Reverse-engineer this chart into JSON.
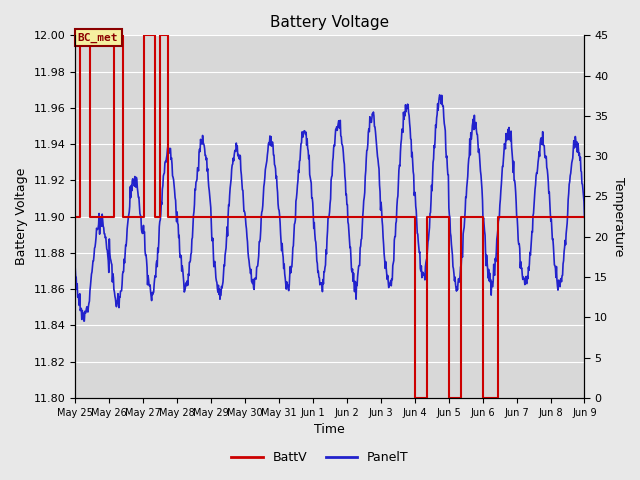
{
  "title": "Battery Voltage",
  "xlabel": "Time",
  "ylabel_left": "Battery Voltage",
  "ylabel_right": "Temperature",
  "ylim_left": [
    11.8,
    12.0
  ],
  "ylim_right": [
    0,
    45
  ],
  "bg_color": "#e8e8e8",
  "plot_bg_color": "#d8d8d8",
  "annotation_text": "BC_met",
  "annotation_bg": "#f5f0a0",
  "annotation_border": "#8b0000",
  "batt_color": "#cc0000",
  "panel_color": "#2222cc",
  "xtick_labels": [
    "May 25",
    "May 26",
    "May 27",
    "May 28",
    "May 29",
    "May 30",
    "May 31",
    "Jun 1",
    "Jun 2",
    "Jun 3",
    "Jun 4",
    "Jun 5",
    "Jun 6",
    "Jun 7",
    "Jun 8",
    "Jun 9"
  ],
  "yticks_left": [
    11.8,
    11.82,
    11.84,
    11.86,
    11.88,
    11.9,
    11.92,
    11.94,
    11.96,
    11.98,
    12.0
  ],
  "yticks_right": [
    0,
    5,
    10,
    15,
    20,
    25,
    30,
    35,
    40,
    45
  ]
}
